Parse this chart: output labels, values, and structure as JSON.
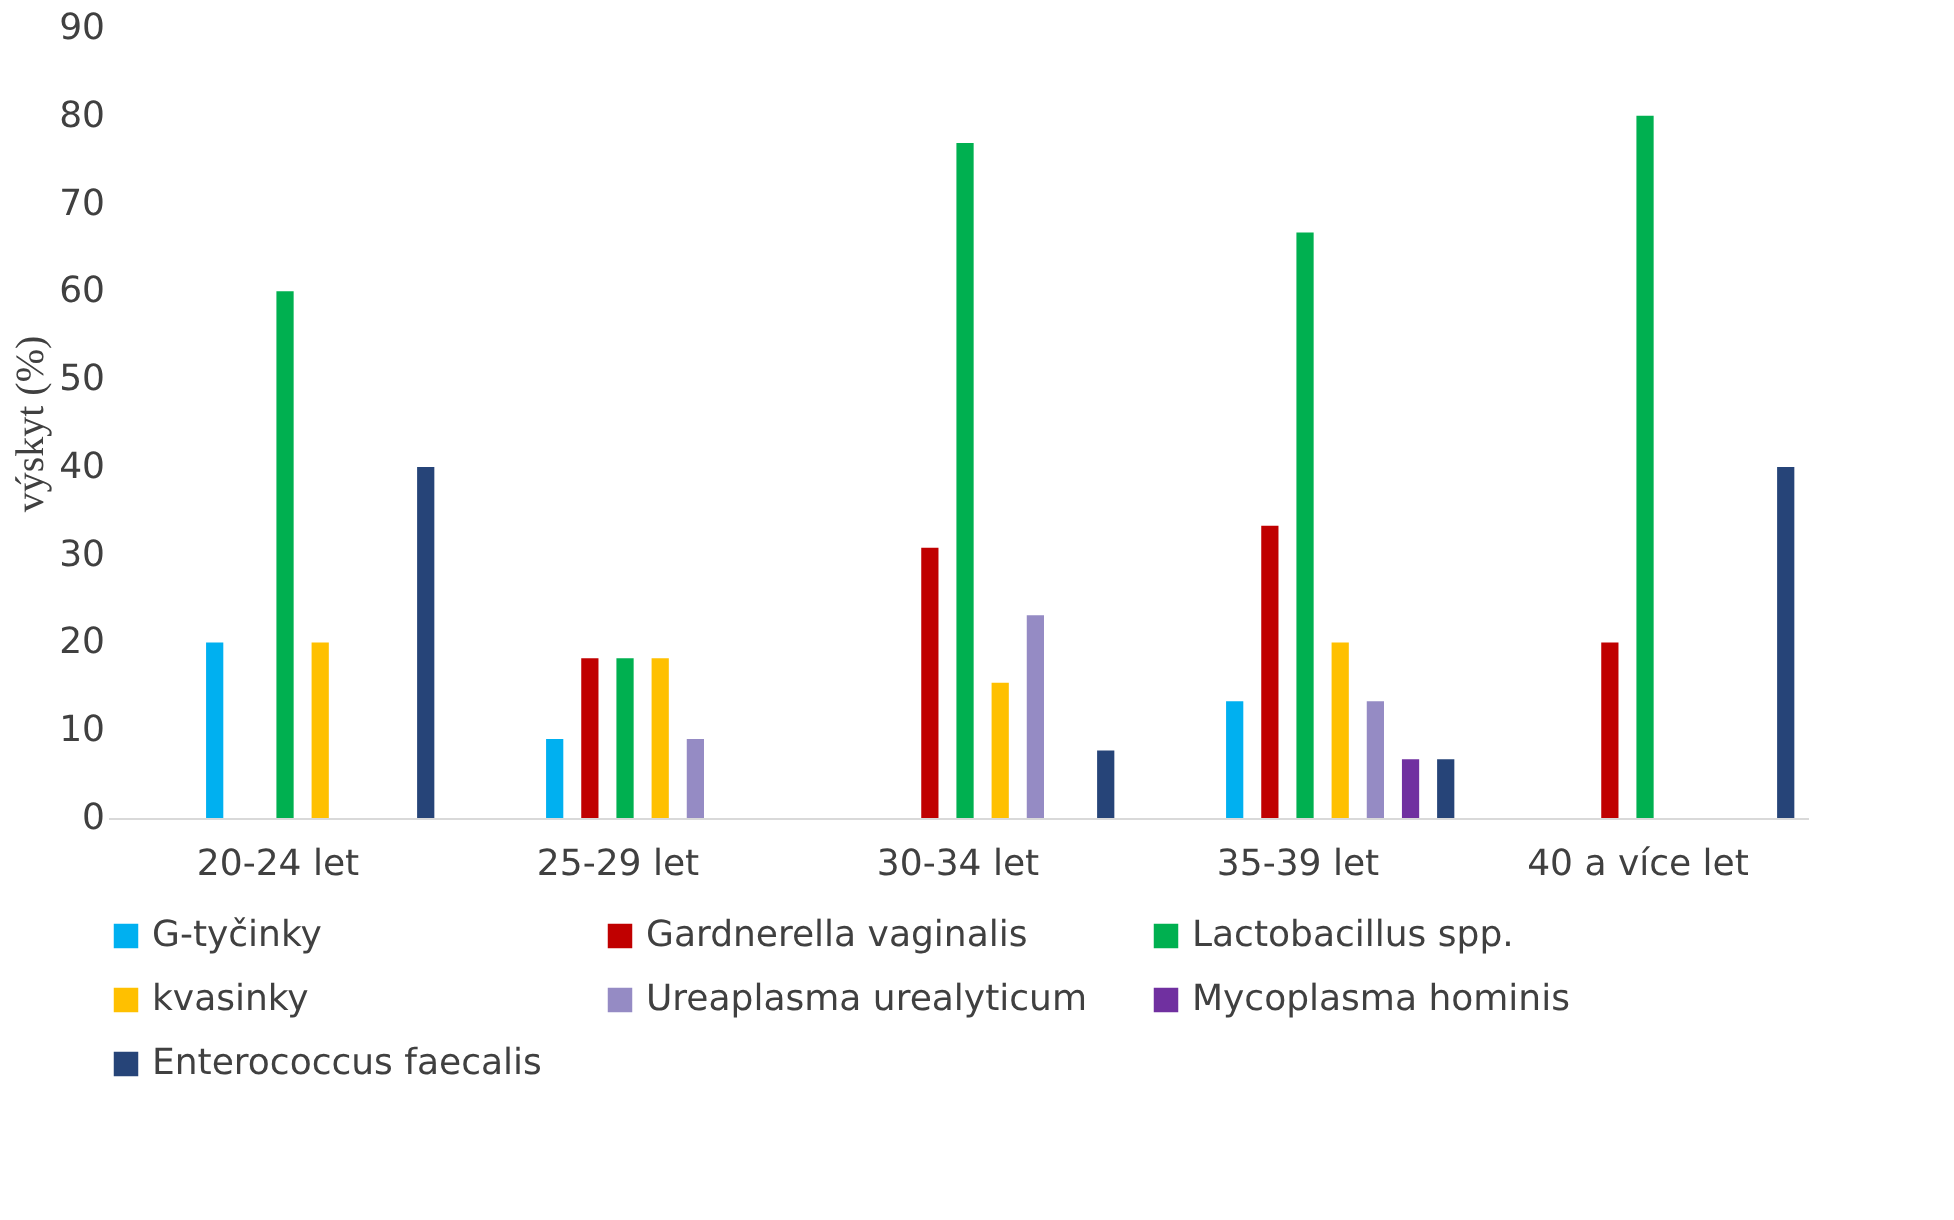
{
  "chart_data": {
    "type": "bar",
    "ylabel": "výskyt (%)",
    "categories": [
      "20-24 let",
      "25-29 let",
      "30-34 let",
      "35-39 let",
      "40 a více let"
    ],
    "series": [
      {
        "name": "G-tyčinky",
        "color": "#00b0f0",
        "values": [
          20,
          9,
          null,
          13.3,
          null
        ]
      },
      {
        "name": "Gardnerella vaginalis",
        "color": "#c00000",
        "values": [
          null,
          18.2,
          30.8,
          33.3,
          20
        ]
      },
      {
        "name": "Lactobacillus spp.",
        "color": "#00b050",
        "values": [
          60,
          18.2,
          76.9,
          66.7,
          80
        ]
      },
      {
        "name": "kvasinky",
        "color": "#ffc000",
        "values": [
          20,
          18.2,
          15.4,
          20,
          null
        ]
      },
      {
        "name": "Ureaplasma urealyticum",
        "color": "#958bc4",
        "values": [
          null,
          9,
          23.1,
          13.3,
          null
        ]
      },
      {
        "name": "Mycoplasma hominis",
        "color": "#7030a0",
        "values": [
          null,
          null,
          null,
          6.7,
          null
        ]
      },
      {
        "name": "Enterococcus faecalis",
        "color": "#264478",
        "values": [
          40,
          null,
          7.7,
          6.7,
          40
        ]
      }
    ],
    "ylim": [
      0,
      90
    ],
    "yticks": [
      0,
      10,
      20,
      30,
      40,
      50,
      60,
      70,
      80,
      90
    ],
    "grid": false,
    "legend": "bottom"
  }
}
